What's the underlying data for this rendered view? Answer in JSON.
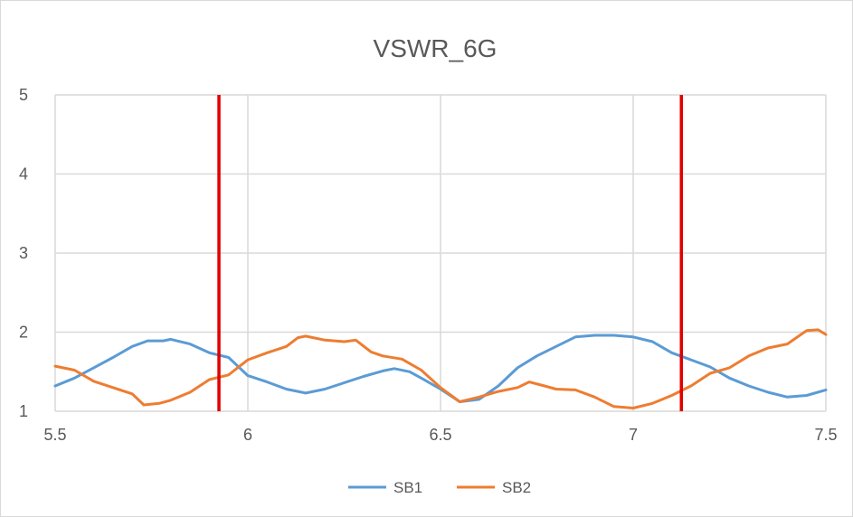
{
  "chart_data": {
    "type": "line",
    "title": "VSWR_6G",
    "xlabel": "",
    "ylabel": "",
    "xlim": [
      5.5,
      7.5
    ],
    "ylim": [
      1,
      5
    ],
    "x_ticks": [
      5.5,
      6,
      6.5,
      7,
      7.5
    ],
    "x_tick_labels": [
      "5.5",
      "6",
      "6.5",
      "7",
      "7.5"
    ],
    "y_ticks": [
      1,
      2,
      3,
      4,
      5
    ],
    "y_tick_labels": [
      "1",
      "2",
      "3",
      "4",
      "5"
    ],
    "grid": true,
    "legend_position": "bottom",
    "markers": [
      {
        "x": 5.925,
        "color": "#e00000"
      },
      {
        "x": 7.125,
        "color": "#e00000"
      }
    ],
    "series": [
      {
        "name": "SB1",
        "color": "#5b9bd5",
        "points": [
          [
            5.5,
            1.32
          ],
          [
            5.55,
            1.42
          ],
          [
            5.6,
            1.55
          ],
          [
            5.65,
            1.68
          ],
          [
            5.7,
            1.82
          ],
          [
            5.74,
            1.89
          ],
          [
            5.78,
            1.89
          ],
          [
            5.8,
            1.91
          ],
          [
            5.85,
            1.85
          ],
          [
            5.9,
            1.74
          ],
          [
            5.95,
            1.68
          ],
          [
            6.0,
            1.45
          ],
          [
            6.05,
            1.37
          ],
          [
            6.1,
            1.28
          ],
          [
            6.15,
            1.23
          ],
          [
            6.2,
            1.28
          ],
          [
            6.25,
            1.36
          ],
          [
            6.3,
            1.44
          ],
          [
            6.35,
            1.51
          ],
          [
            6.38,
            1.54
          ],
          [
            6.42,
            1.5
          ],
          [
            6.45,
            1.42
          ],
          [
            6.5,
            1.28
          ],
          [
            6.55,
            1.12
          ],
          [
            6.6,
            1.15
          ],
          [
            6.65,
            1.32
          ],
          [
            6.7,
            1.55
          ],
          [
            6.75,
            1.7
          ],
          [
            6.8,
            1.82
          ],
          [
            6.85,
            1.94
          ],
          [
            6.9,
            1.96
          ],
          [
            6.95,
            1.96
          ],
          [
            7.0,
            1.94
          ],
          [
            7.05,
            1.88
          ],
          [
            7.1,
            1.74
          ],
          [
            7.15,
            1.65
          ],
          [
            7.2,
            1.56
          ],
          [
            7.25,
            1.42
          ],
          [
            7.3,
            1.32
          ],
          [
            7.35,
            1.24
          ],
          [
            7.4,
            1.18
          ],
          [
            7.45,
            1.2
          ],
          [
            7.5,
            1.27
          ]
        ]
      },
      {
        "name": "SB2",
        "color": "#ed7d31",
        "points": [
          [
            5.5,
            1.57
          ],
          [
            5.55,
            1.52
          ],
          [
            5.6,
            1.38
          ],
          [
            5.65,
            1.3
          ],
          [
            5.7,
            1.22
          ],
          [
            5.73,
            1.08
          ],
          [
            5.77,
            1.1
          ],
          [
            5.8,
            1.14
          ],
          [
            5.85,
            1.24
          ],
          [
            5.9,
            1.4
          ],
          [
            5.95,
            1.46
          ],
          [
            6.0,
            1.65
          ],
          [
            6.05,
            1.74
          ],
          [
            6.1,
            1.82
          ],
          [
            6.13,
            1.93
          ],
          [
            6.15,
            1.95
          ],
          [
            6.2,
            1.9
          ],
          [
            6.25,
            1.88
          ],
          [
            6.28,
            1.9
          ],
          [
            6.32,
            1.75
          ],
          [
            6.35,
            1.7
          ],
          [
            6.4,
            1.66
          ],
          [
            6.45,
            1.52
          ],
          [
            6.5,
            1.3
          ],
          [
            6.55,
            1.12
          ],
          [
            6.6,
            1.18
          ],
          [
            6.65,
            1.25
          ],
          [
            6.7,
            1.3
          ],
          [
            6.73,
            1.37
          ],
          [
            6.77,
            1.32
          ],
          [
            6.8,
            1.28
          ],
          [
            6.85,
            1.27
          ],
          [
            6.9,
            1.18
          ],
          [
            6.95,
            1.06
          ],
          [
            7.0,
            1.04
          ],
          [
            7.05,
            1.1
          ],
          [
            7.1,
            1.2
          ],
          [
            7.15,
            1.32
          ],
          [
            7.2,
            1.48
          ],
          [
            7.25,
            1.55
          ],
          [
            7.3,
            1.7
          ],
          [
            7.35,
            1.8
          ],
          [
            7.4,
            1.85
          ],
          [
            7.45,
            2.02
          ],
          [
            7.48,
            2.03
          ],
          [
            7.5,
            1.97
          ]
        ]
      }
    ]
  }
}
